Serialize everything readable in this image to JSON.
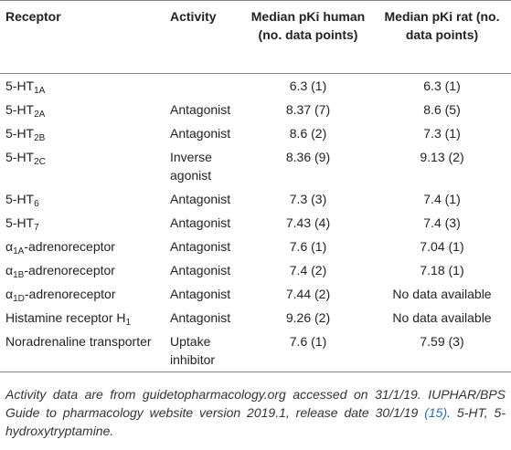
{
  "table": {
    "header": [
      "Receptor",
      "Activity",
      "Median pKi human (no. data points)",
      "Median pKi rat (no. data points)"
    ],
    "rows": [
      [
        {
          "text": "5-HT",
          "sub": "1A"
        },
        null,
        "6.3 (1)",
        "6.3 (1)"
      ],
      [
        {
          "text": "5-HT",
          "sub": "2A"
        },
        "Antagonist",
        "8.37 (7)",
        "8.6 (5)"
      ],
      [
        {
          "text": "5-HT",
          "sub": "2B"
        },
        "Antagonist",
        "8.6 (2)",
        "7.3 (1)"
      ],
      [
        {
          "text": "5-HT",
          "sub": "2C"
        },
        "Inverse agonist",
        "8.36 (9)",
        "9.13 (2)"
      ],
      [
        {
          "text": "5-HT",
          "sub": "6"
        },
        "Antagonist",
        "7.3 (3)",
        "7.4 (1)"
      ],
      [
        {
          "text": "5-HT",
          "sub": "7"
        },
        "Antagonist",
        "7.43 (4)",
        "7.4 (3)"
      ],
      [
        {
          "text": "α",
          "sub": "1A",
          "after": "-adrenoreceptor"
        },
        "Antagonist",
        "7.6 (1)",
        "7.04 (1)"
      ],
      [
        {
          "text": "α",
          "sub": "1B",
          "after": "-adrenoreceptor"
        },
        "Antagonist",
        "7.4 (2)",
        "7.18 (1)"
      ],
      [
        {
          "text": "α",
          "sub": "1D",
          "after": "-adrenoreceptor"
        },
        "Antagonist",
        "7.44 (2)",
        "No data available"
      ],
      [
        {
          "text": "Histamine receptor H",
          "sub": "1"
        },
        "Antagonist",
        "9.26 (2)",
        "No data available"
      ],
      [
        {
          "text": "Noradrenaline transporter"
        },
        "Uptake inhibitor",
        "7.6 (1)",
        "7.59 (3)"
      ]
    ]
  },
  "footnote": {
    "before": "Activity data are from guidetopharmacology.org accessed on 31/1/19. IUPHAR/BPS Guide to pharmacology website version 2019.1, release date 30/1/19 ",
    "link": "(15)",
    "after": ". 5-HT, 5-hydroxytryptamine."
  }
}
